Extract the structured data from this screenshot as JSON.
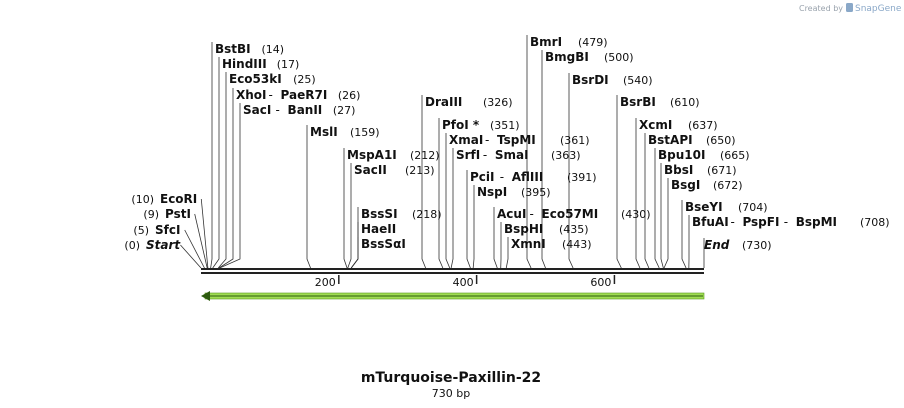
{
  "watermark": {
    "created_by": "Created by",
    "brand": "SnapGene",
    "icon": "snapgene-logo-icon"
  },
  "plasmid": {
    "name": "mTurquoise-Paxillin-22",
    "length_label": "730 bp",
    "length_bp": 730
  },
  "ruler": {
    "ticks": [
      {
        "bp": 200,
        "label": "200"
      },
      {
        "bp": 400,
        "label": "400"
      },
      {
        "bp": 600,
        "label": "600"
      }
    ]
  },
  "feature": {
    "name": "orf-arrow",
    "start_bp": 0,
    "end_bp": 730,
    "direction": "reverse",
    "color": "#9fdc52"
  },
  "labels": [
    {
      "id": "start",
      "kind": "terminus",
      "side": "left",
      "pos_label": "(0)",
      "names": [
        "Start"
      ],
      "site_bp": 0
    },
    {
      "id": "sfci",
      "side": "left",
      "pos_label": "(5)",
      "names": [
        "SfcI"
      ],
      "site_bp": 5
    },
    {
      "id": "psti",
      "side": "left",
      "pos_label": "(9)",
      "names": [
        "PstI"
      ],
      "site_bp": 9
    },
    {
      "id": "ecori",
      "side": "left",
      "pos_label": "(10)",
      "names": [
        "EcoRI"
      ],
      "site_bp": 10
    },
    {
      "id": "bstbi",
      "side": "right",
      "names": [
        "BstBI"
      ],
      "pos_label": "(14)",
      "site_bp": 14
    },
    {
      "id": "hindiii",
      "side": "right",
      "names": [
        "HindIII"
      ],
      "pos_label": "(17)",
      "site_bp": 17
    },
    {
      "id": "eco53ki",
      "side": "right",
      "names": [
        "Eco53kI"
      ],
      "pos_label": "(25)",
      "site_bp": 25
    },
    {
      "id": "xhoi",
      "side": "right",
      "names": [
        "XhoI",
        "PaeR7I"
      ],
      "pos_label": "(26)",
      "site_bp": 26
    },
    {
      "id": "saci",
      "side": "right",
      "names": [
        "SacI",
        "BanII"
      ],
      "pos_label": "(27)",
      "site_bp": 27
    },
    {
      "id": "msli",
      "side": "right",
      "names": [
        "MslI"
      ],
      "pos_label": "(159)",
      "site_bp": 159
    },
    {
      "id": "mspa1i",
      "side": "right",
      "names": [
        "MspA1I"
      ],
      "pos_label": "(212)",
      "site_bp": 212
    },
    {
      "id": "sacii",
      "side": "right",
      "names": [
        "SacII"
      ],
      "pos_label": "(213)",
      "site_bp": 213
    },
    {
      "id": "bsssi",
      "side": "right",
      "names": [
        "BssSI"
      ],
      "pos_label": "(218)",
      "site_bp": 218
    },
    {
      "id": "haeii",
      "side": "right",
      "names": [
        "HaeII"
      ],
      "pos_label": "",
      "site_bp": 218
    },
    {
      "id": "bsssai",
      "side": "right",
      "names": [
        "BssSαI"
      ],
      "pos_label": "",
      "site_bp": 218
    },
    {
      "id": "draiii",
      "side": "right",
      "names": [
        "DraIII"
      ],
      "pos_label": "(326)",
      "site_bp": 326
    },
    {
      "id": "pfoi",
      "side": "right",
      "names": [
        "PfoI *"
      ],
      "pos_label": "(351)",
      "site_bp": 351
    },
    {
      "id": "xmai",
      "side": "right",
      "names": [
        "XmaI",
        "TspMI"
      ],
      "pos_label": "(361)",
      "site_bp": 361
    },
    {
      "id": "srfi",
      "side": "right",
      "names": [
        "SrfI",
        "SmaI"
      ],
      "pos_label": "(363)",
      "site_bp": 363
    },
    {
      "id": "pcii",
      "side": "right",
      "names": [
        "PciI",
        "AflIII"
      ],
      "pos_label": "(391)",
      "site_bp": 391
    },
    {
      "id": "nspi",
      "side": "right",
      "names": [
        "NspI"
      ],
      "pos_label": "(395)",
      "site_bp": 395
    },
    {
      "id": "acui",
      "side": "right",
      "names": [
        "AcuI",
        "Eco57MI"
      ],
      "pos_label": "(430)",
      "site_bp": 430
    },
    {
      "id": "bsphi",
      "side": "right",
      "names": [
        "BspHI"
      ],
      "pos_label": "(435)",
      "site_bp": 435
    },
    {
      "id": "xmni",
      "side": "right",
      "names": [
        "XmnI"
      ],
      "pos_label": "(443)",
      "site_bp": 443
    },
    {
      "id": "bmri",
      "side": "right",
      "names": [
        "BmrI"
      ],
      "pos_label": "(479)",
      "site_bp": 479
    },
    {
      "id": "bmgbi",
      "side": "right",
      "names": [
        "BmgBI"
      ],
      "pos_label": "(500)",
      "site_bp": 500
    },
    {
      "id": "bsrdi",
      "side": "right",
      "names": [
        "BsrDI"
      ],
      "pos_label": "(540)",
      "site_bp": 540
    },
    {
      "id": "bsrbi",
      "side": "right",
      "names": [
        "BsrBI"
      ],
      "pos_label": "(610)",
      "site_bp": 610
    },
    {
      "id": "xcmi",
      "side": "right",
      "names": [
        "XcmI"
      ],
      "pos_label": "(637)",
      "site_bp": 637
    },
    {
      "id": "bstapi",
      "side": "right",
      "names": [
        "BstAPI"
      ],
      "pos_label": "(650)",
      "site_bp": 650
    },
    {
      "id": "bpu10i",
      "side": "right",
      "names": [
        "Bpu10I"
      ],
      "pos_label": "(665)",
      "site_bp": 665
    },
    {
      "id": "bsbi",
      "side": "right",
      "names": [
        "BbsI"
      ],
      "pos_label": "(671)",
      "site_bp": 671
    },
    {
      "id": "bsgi",
      "side": "right",
      "names": [
        "BsgI"
      ],
      "pos_label": "(672)",
      "site_bp": 672
    },
    {
      "id": "bseyi",
      "side": "right",
      "names": [
        "BseYI"
      ],
      "pos_label": "(704)",
      "site_bp": 704
    },
    {
      "id": "bfuai",
      "side": "right",
      "names": [
        "BfuAI",
        "PspFI",
        "BspMI"
      ],
      "pos_label": "(708)",
      "site_bp": 708
    },
    {
      "id": "end",
      "kind": "terminus",
      "side": "right",
      "names": [
        "End"
      ],
      "pos_label": "(730)",
      "site_bp": 730
    }
  ]
}
